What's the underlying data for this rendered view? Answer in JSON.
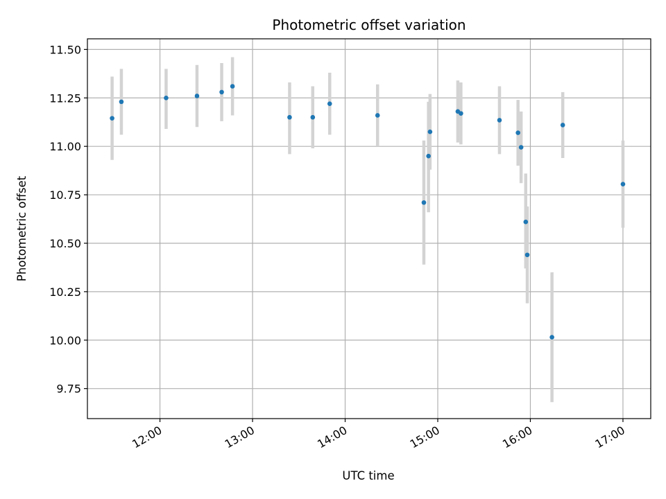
{
  "chart_data": {
    "type": "scatter",
    "title": "Photometric offset variation",
    "xlabel": "UTC time",
    "ylabel": "Photometric offset",
    "xlim": [
      "11:13",
      "17:18"
    ],
    "ylim": [
      9.595,
      11.555
    ],
    "x_ticks": [
      "12:00",
      "13:00",
      "14:00",
      "15:00",
      "16:00",
      "17:00"
    ],
    "y_ticks": [
      "9.75",
      "10.00",
      "10.25",
      "10.50",
      "10.75",
      "11.00",
      "11.25",
      "11.50"
    ],
    "grid": true,
    "colors": {
      "marker": "#1f77b4",
      "errorbar": "#d3d3d3",
      "grid": "#b0b0b0"
    },
    "series": [
      {
        "points": [
          {
            "x": "11:29",
            "y": 11.145,
            "low": 10.93,
            "high": 11.36
          },
          {
            "x": "11:35",
            "y": 11.23,
            "low": 11.06,
            "high": 11.4
          },
          {
            "x": "12:04",
            "y": 11.25,
            "low": 11.09,
            "high": 11.4
          },
          {
            "x": "12:24",
            "y": 11.26,
            "low": 11.1,
            "high": 11.42
          },
          {
            "x": "12:40",
            "y": 11.28,
            "low": 11.13,
            "high": 11.43
          },
          {
            "x": "12:47",
            "y": 11.31,
            "low": 11.16,
            "high": 11.46
          },
          {
            "x": "13:24",
            "y": 11.15,
            "low": 10.96,
            "high": 11.33
          },
          {
            "x": "13:39",
            "y": 11.15,
            "low": 10.99,
            "high": 11.31
          },
          {
            "x": "13:50",
            "y": 11.22,
            "low": 11.06,
            "high": 11.38
          },
          {
            "x": "14:21",
            "y": 11.16,
            "low": 11.0,
            "high": 11.32
          },
          {
            "x": "14:51",
            "y": 10.71,
            "low": 10.39,
            "high": 11.03
          },
          {
            "x": "14:54",
            "y": 10.95,
            "low": 10.66,
            "high": 11.23
          },
          {
            "x": "14:55",
            "y": 11.075,
            "low": 10.88,
            "high": 11.27
          },
          {
            "x": "15:13",
            "y": 11.18,
            "low": 11.02,
            "high": 11.34
          },
          {
            "x": "15:15",
            "y": 11.17,
            "low": 11.01,
            "high": 11.33
          },
          {
            "x": "15:40",
            "y": 11.135,
            "low": 10.96,
            "high": 11.31
          },
          {
            "x": "15:52",
            "y": 11.07,
            "low": 10.9,
            "high": 11.24
          },
          {
            "x": "15:54",
            "y": 10.995,
            "low": 10.81,
            "high": 11.18
          },
          {
            "x": "15:57",
            "y": 10.61,
            "low": 10.37,
            "high": 10.86
          },
          {
            "x": "15:58",
            "y": 10.44,
            "low": 10.19,
            "high": 10.69
          },
          {
            "x": "16:14",
            "y": 10.015,
            "low": 9.68,
            "high": 10.35
          },
          {
            "x": "16:21",
            "y": 11.11,
            "low": 10.94,
            "high": 11.28
          },
          {
            "x": "17:00",
            "y": 10.805,
            "low": 10.58,
            "high": 11.03
          }
        ]
      }
    ]
  }
}
